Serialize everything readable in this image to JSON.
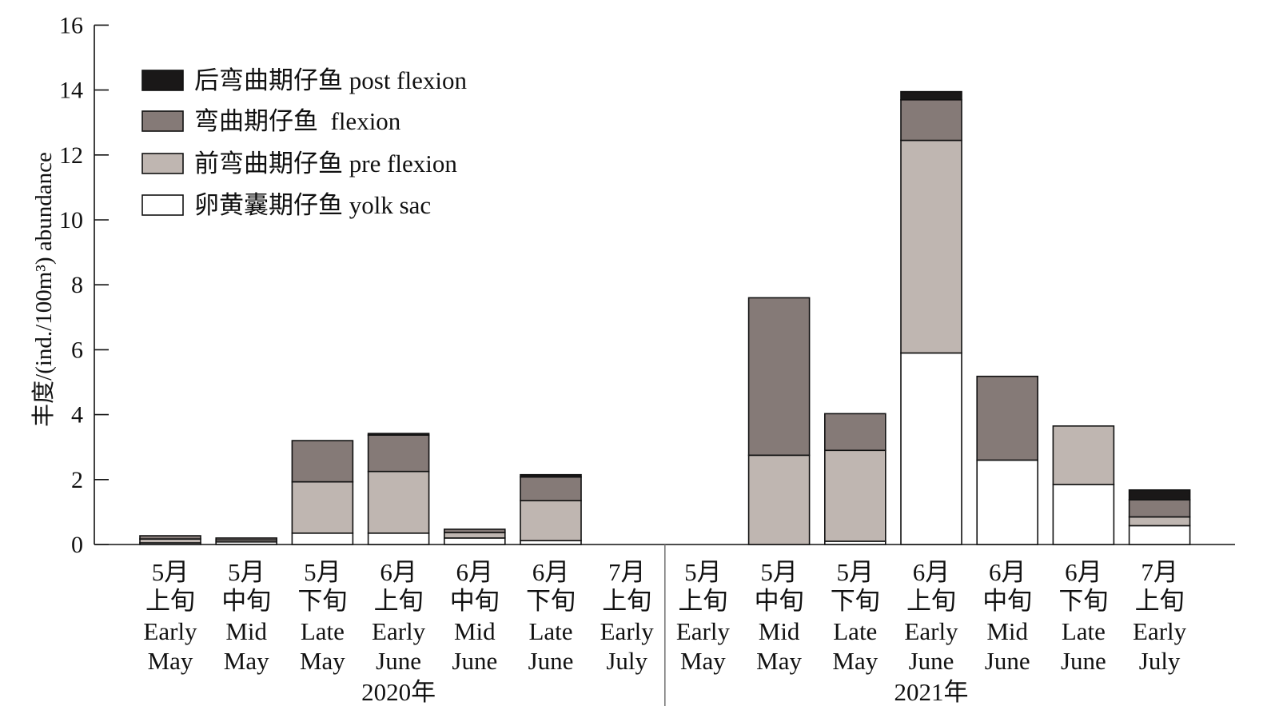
{
  "chart_data": {
    "type": "bar",
    "stacked": true,
    "ylabel": "丰度/(ind./100m³) abundance",
    "ylim": [
      0,
      16
    ],
    "yticks": [
      0,
      2,
      4,
      6,
      8,
      10,
      12,
      14,
      16
    ],
    "grid": false,
    "legend_position": "top-left",
    "groups": [
      {
        "label": "2020年",
        "categories": [
          {
            "zh_month": "5月",
            "zh_period": "上旬",
            "en_period": "Early",
            "en_month": "May"
          },
          {
            "zh_month": "5月",
            "zh_period": "中旬",
            "en_period": "Mid",
            "en_month": "May"
          },
          {
            "zh_month": "5月",
            "zh_period": "下旬",
            "en_period": "Late",
            "en_month": "May"
          },
          {
            "zh_month": "6月",
            "zh_period": "上旬",
            "en_period": "Early",
            "en_month": "June"
          },
          {
            "zh_month": "6月",
            "zh_period": "中旬",
            "en_period": "Mid",
            "en_month": "June"
          },
          {
            "zh_month": "6月",
            "zh_period": "下旬",
            "en_period": "Late",
            "en_month": "June"
          },
          {
            "zh_month": "7月",
            "zh_period": "上旬",
            "en_period": "Early",
            "en_month": "July"
          }
        ]
      },
      {
        "label": "2021年",
        "categories": [
          {
            "zh_month": "5月",
            "zh_period": "上旬",
            "en_period": "Early",
            "en_month": "May"
          },
          {
            "zh_month": "5月",
            "zh_period": "中旬",
            "en_period": "Mid",
            "en_month": "May"
          },
          {
            "zh_month": "5月",
            "zh_period": "下旬",
            "en_period": "Late",
            "en_month": "May"
          },
          {
            "zh_month": "6月",
            "zh_period": "上旬",
            "en_period": "Early",
            "en_month": "June"
          },
          {
            "zh_month": "6月",
            "zh_period": "中旬",
            "en_period": "Mid",
            "en_month": "June"
          },
          {
            "zh_month": "6月",
            "zh_period": "下旬",
            "en_period": "Late",
            "en_month": "June"
          },
          {
            "zh_month": "7月",
            "zh_period": "上旬",
            "en_period": "Early",
            "en_month": "July"
          }
        ]
      }
    ],
    "series": [
      {
        "name": "卵黄囊期仔鱼 yolk sac",
        "color": "#ffffff",
        "values": [
          0.05,
          0.08,
          0.35,
          0.35,
          0.2,
          0.12,
          0,
          0,
          0,
          0.1,
          5.9,
          2.6,
          1.85,
          0.58
        ]
      },
      {
        "name": "前弯曲期仔鱼 pre flexion",
        "color": "#bfb6b1",
        "values": [
          0.12,
          0.06,
          1.58,
          1.9,
          0.17,
          1.23,
          0,
          0,
          2.75,
          2.8,
          6.55,
          0,
          1.8,
          0.27
        ]
      },
      {
        "name": "弯曲期仔鱼  flexion",
        "color": "#857a77",
        "values": [
          0.1,
          0.06,
          1.27,
          1.12,
          0.1,
          0.73,
          0,
          0,
          4.85,
          1.13,
          1.25,
          2.58,
          0,
          0.53
        ]
      },
      {
        "name": "后弯曲期仔鱼 post flexion",
        "color": "#1a1818",
        "values": [
          0,
          0,
          0,
          0.05,
          0,
          0.07,
          0,
          0,
          0,
          0,
          0.25,
          0,
          0,
          0.3
        ]
      }
    ],
    "legend_order": [
      3,
      2,
      1,
      0
    ]
  }
}
